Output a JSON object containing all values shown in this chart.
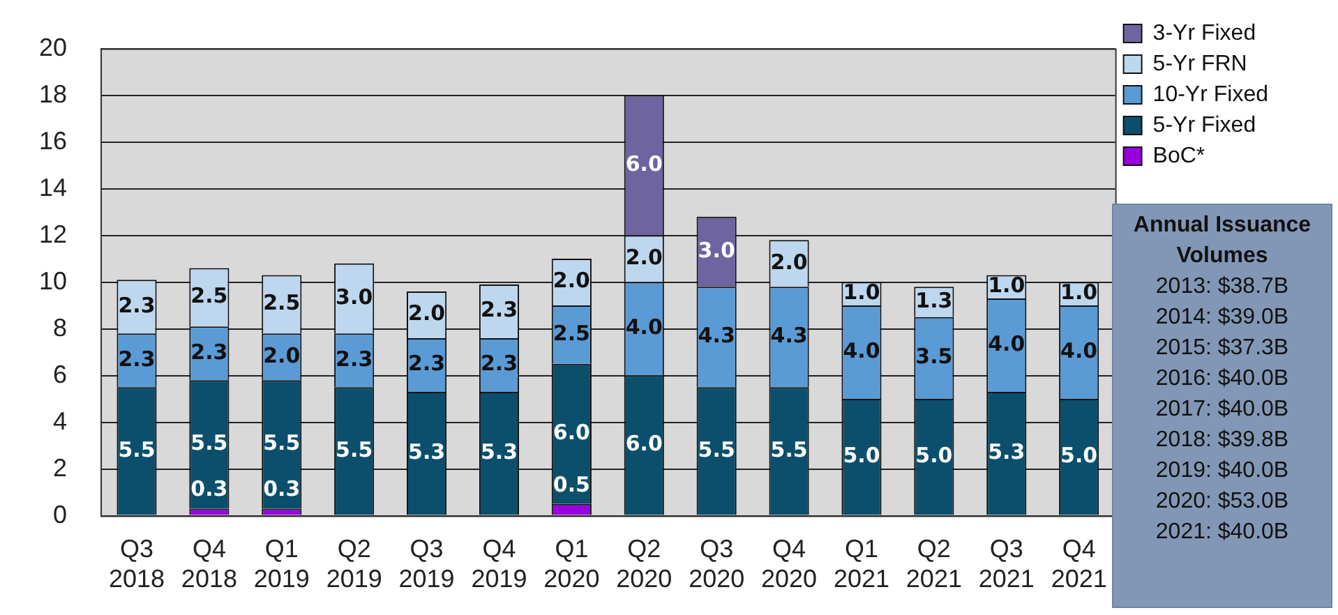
{
  "chart_data": {
    "type": "bar",
    "stacked": true,
    "categories": [
      "Q3 2018",
      "Q4 2018",
      "Q1 2019",
      "Q2 2019",
      "Q3 2019",
      "Q4 2019",
      "Q1 2020",
      "Q2 2020",
      "Q3 2020",
      "Q4 2020",
      "Q1 2021",
      "Q2 2021",
      "Q3 2021",
      "Q4 2021"
    ],
    "series": [
      {
        "name": "BoC*",
        "color": "#9900dd",
        "values": [
          null,
          0.3,
          0.3,
          null,
          null,
          null,
          0.5,
          null,
          null,
          null,
          null,
          null,
          null,
          null
        ],
        "value_labels": [
          null,
          "0.3",
          "0.3",
          null,
          null,
          null,
          "0.5",
          null,
          null,
          null,
          null,
          null,
          null,
          null
        ]
      },
      {
        "name": "5-Yr Fixed",
        "color": "#0b4f6c",
        "values": [
          5.5,
          5.5,
          5.5,
          5.5,
          5.3,
          5.3,
          6.0,
          6.0,
          5.5,
          5.5,
          5.0,
          5.0,
          5.3,
          5.0
        ],
        "value_labels": [
          "5.5",
          "5.5",
          "5.5",
          "5.5",
          "5.3",
          "5.3",
          "6.0",
          "6.0",
          "5.5",
          "5.5",
          "5.0",
          "5.0",
          "5.3",
          "5.0"
        ]
      },
      {
        "name": "10-Yr Fixed",
        "color": "#5b9bd5",
        "values": [
          2.3,
          2.3,
          2.0,
          2.3,
          2.3,
          2.3,
          2.5,
          4.0,
          4.3,
          4.3,
          4.0,
          3.5,
          4.0,
          4.0
        ],
        "value_labels": [
          "2.3",
          "2.3",
          "2.0",
          "2.3",
          "2.3",
          "2.3",
          "2.5",
          "4.0",
          "4.3",
          "4.3",
          "4.0",
          "3.5",
          "4.0",
          "4.0"
        ]
      },
      {
        "name": "5-Yr FRN",
        "color": "#bdd7ee",
        "values": [
          2.3,
          2.5,
          2.5,
          3.0,
          2.0,
          2.3,
          2.0,
          2.0,
          null,
          2.0,
          1.0,
          1.3,
          1.0,
          1.0
        ],
        "value_labels": [
          "2.3",
          "2.5",
          "2.5",
          "3.0",
          "2.0",
          "2.3",
          "2.0",
          "2.0",
          null,
          "2.0",
          "1.0",
          "1.3",
          "1.0",
          "1.0"
        ]
      },
      {
        "name": "3-Yr Fixed",
        "color": "#6e64a0",
        "values": [
          null,
          null,
          null,
          null,
          null,
          null,
          null,
          6.0,
          3.0,
          null,
          null,
          null,
          null,
          null
        ],
        "value_labels": [
          null,
          null,
          null,
          null,
          null,
          null,
          null,
          "6.0",
          "3.0",
          null,
          null,
          null,
          null,
          null
        ]
      }
    ],
    "ylim": [
      0,
      20
    ],
    "yticks": [
      0,
      2,
      4,
      6,
      8,
      10,
      12,
      14,
      16,
      18,
      20
    ],
    "grid": "y",
    "legend": "top right",
    "annotations": [
      "Annual Issuance Volumes",
      "2013: $38.7B",
      "2014: $39.0B",
      "2015: $37.3B",
      "2016: $40.0B",
      "2017: $40.0B",
      "2018: $39.8B",
      "2019: $40.0B",
      "2020: $53.0B",
      "2021: $40.0B"
    ]
  }
}
